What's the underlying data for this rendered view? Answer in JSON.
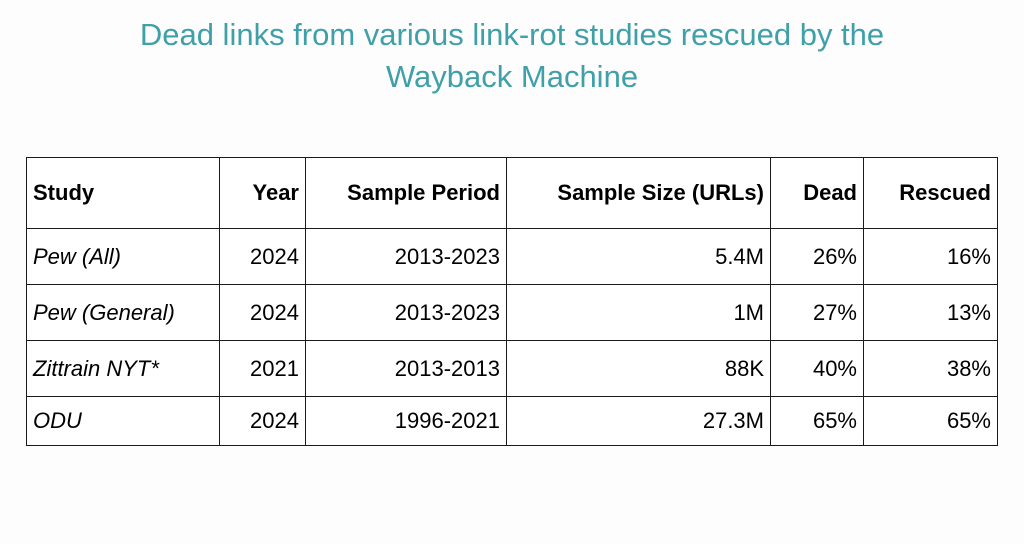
{
  "title": {
    "line1": "Dead links from various link-rot studies rescued by the",
    "line2": "Wayback Machine"
  },
  "colors": {
    "title": "#3fa0a8",
    "text": "#000000",
    "border": "#1a1a1a"
  },
  "table": {
    "headers": [
      "Study",
      "Year",
      "Sample Period",
      "Sample Size (URLs)",
      "Dead",
      "Rescued"
    ],
    "rows": [
      [
        "Pew (All)",
        "2024",
        "2013-2023",
        "5.4M",
        "26%",
        "16%"
      ],
      [
        "Pew (General)",
        "2024",
        "2013-2023",
        "1M",
        "27%",
        "13%"
      ],
      [
        "Zittrain NYT*",
        "2021",
        "2013-2013",
        "88K",
        "40%",
        "38%"
      ],
      [
        "ODU",
        "2024",
        "1996-2021",
        "27.3M",
        "65%",
        "65%"
      ]
    ]
  }
}
